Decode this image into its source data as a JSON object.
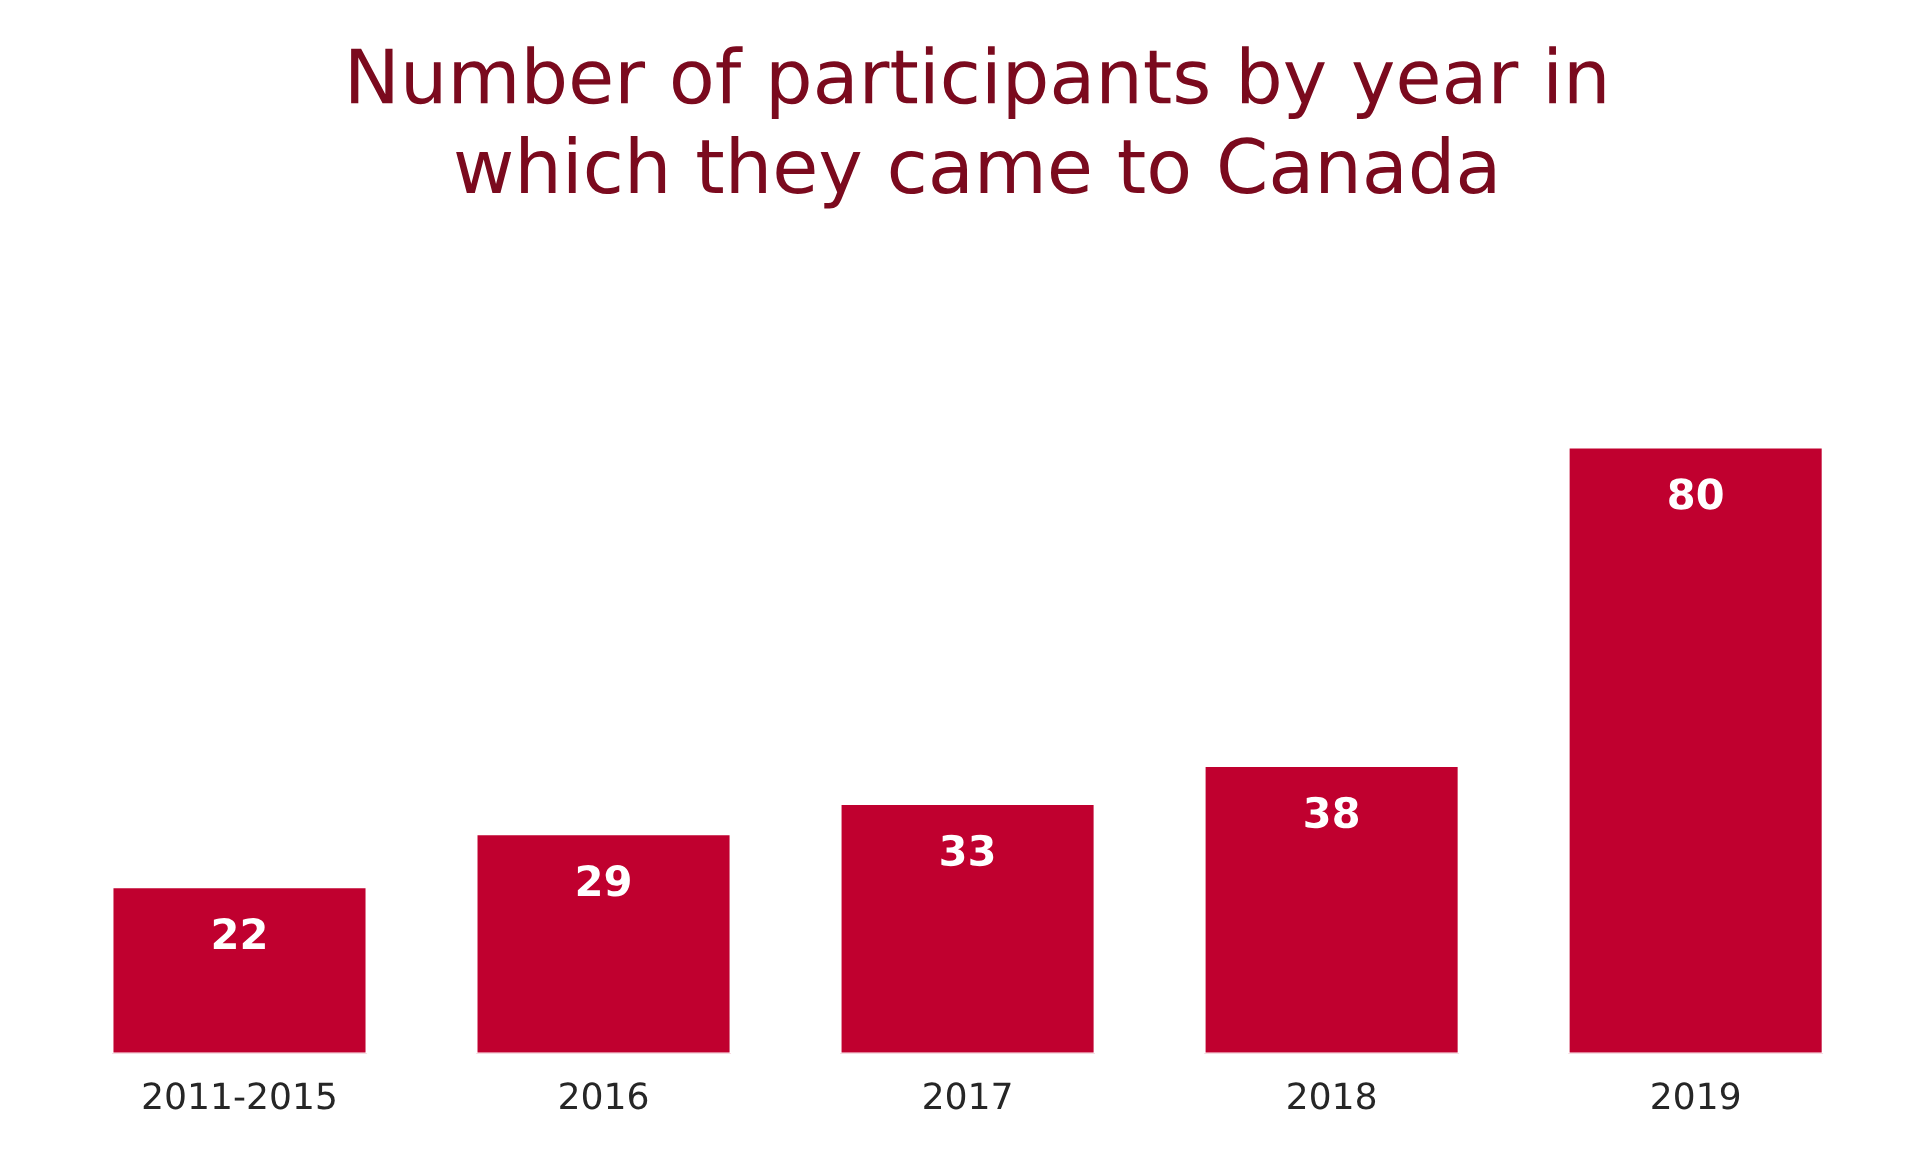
{
  "chart_data": {
    "type": "bar",
    "title": "Number of participants by year in\nwhich they came to Canada",
    "categories": [
      "2011-2015",
      "2016",
      "2017",
      "2018",
      "2019"
    ],
    "values": [
      22,
      29,
      33,
      38,
      80
    ],
    "color": "#c0002f",
    "data_labels": true,
    "grid": false,
    "legend": false
  }
}
